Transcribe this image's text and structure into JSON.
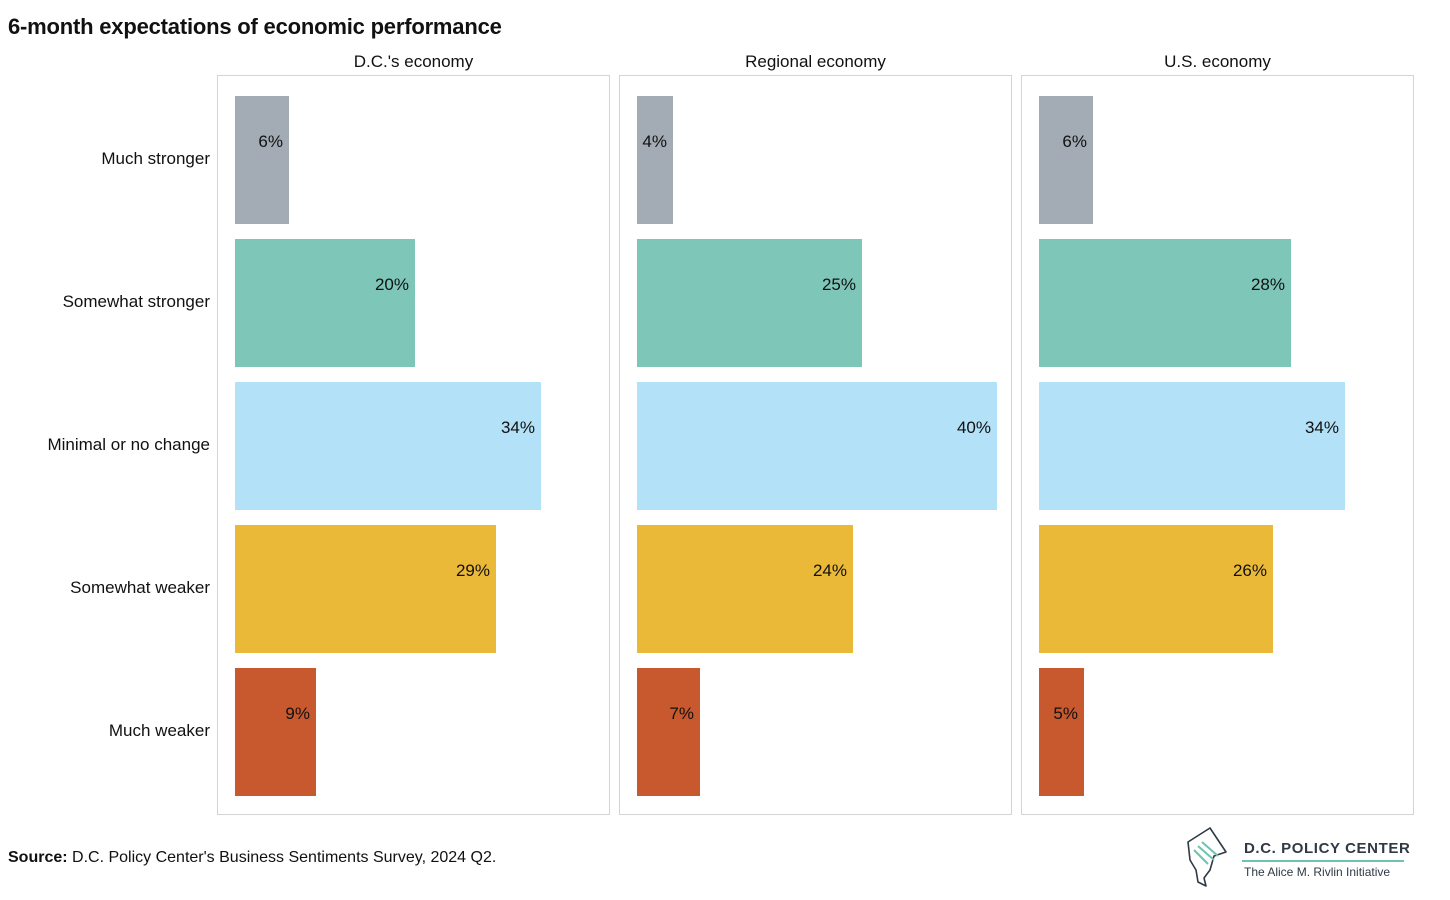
{
  "chart_data": {
    "type": "bar",
    "orientation": "horizontal",
    "title": "6-month expectations of economic performance",
    "categories": [
      "Much stronger",
      "Somewhat stronger",
      "Minimal or no change",
      "Somewhat weaker",
      "Much weaker"
    ],
    "colors": [
      "#a3abb5",
      "#7dc6b8",
      "#b2e1f8",
      "#eab937",
      "#c8582e"
    ],
    "xlim": [
      0,
      40
    ],
    "panels": [
      {
        "name": "D.C.'s economy",
        "values": [
          6,
          20,
          34,
          29,
          9
        ],
        "labels": [
          "6%",
          "20%",
          "34%",
          "29%",
          "9%"
        ]
      },
      {
        "name": "Regional economy",
        "values": [
          4,
          25,
          40,
          24,
          7
        ],
        "labels": [
          "4%",
          "25%",
          "40%",
          "24%",
          "7%"
        ]
      },
      {
        "name": "U.S. economy",
        "values": [
          6,
          28,
          34,
          26,
          5
        ],
        "labels": [
          "6%",
          "28%",
          "34%",
          "26%",
          "5%"
        ]
      }
    ]
  },
  "source": {
    "label": "Source:",
    "text": " D.C. Policy Center's Business Sentiments Survey, 2024 Q2."
  },
  "logo": {
    "name": "D.C. POLICY CENTER",
    "subtitle": "The Alice M. Rivlin Initiative"
  }
}
